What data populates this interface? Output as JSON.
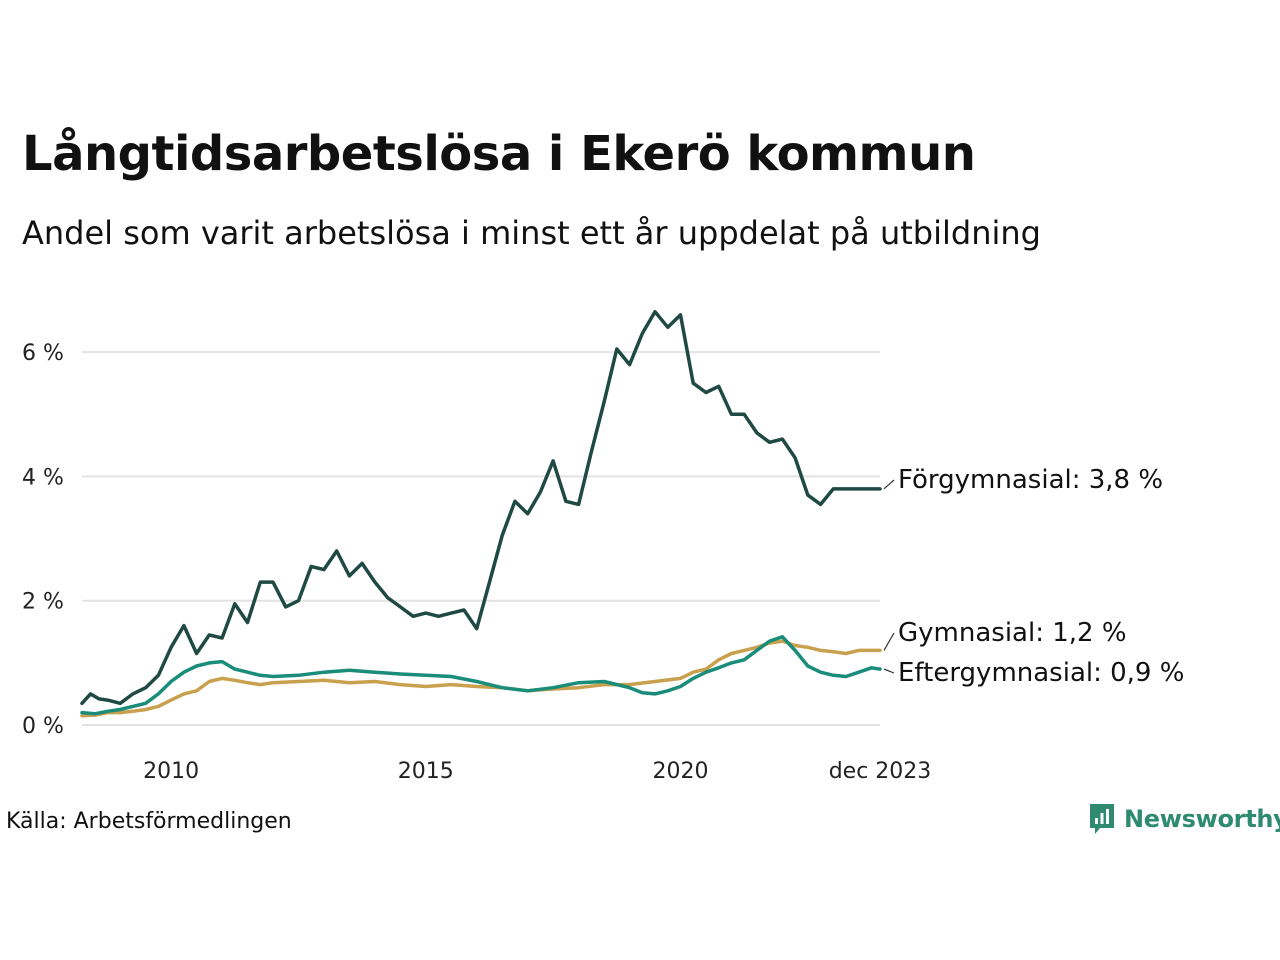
{
  "title": "Långtidsarbetslösa i Ekerö kommun",
  "subtitle": "Andel som varit arbetslösa i minst ett år uppdelat på utbildning",
  "source": "Källa: Arbetsförmedlingen",
  "brand": {
    "name": "Newsworthy",
    "icon": "newsworthy-logo-icon",
    "color": "#2e8b6f"
  },
  "chart_data": {
    "type": "line",
    "title": "Långtidsarbetslösa i Ekerö kommun",
    "xlabel": "",
    "ylabel": "",
    "xlim": [
      2008.25,
      2023.917
    ],
    "ylim": [
      0,
      7
    ],
    "grid": true,
    "y_ticks": [
      {
        "value": 0,
        "label": "0 %"
      },
      {
        "value": 2,
        "label": "2 %"
      },
      {
        "value": 4,
        "label": "4 %"
      },
      {
        "value": 6,
        "label": "6 %"
      }
    ],
    "x_ticks": [
      {
        "value": 2010,
        "label": "2010"
      },
      {
        "value": 2015,
        "label": "2015"
      },
      {
        "value": 2020,
        "label": "2020"
      },
      {
        "value": 2023.917,
        "label": "dec 2023"
      }
    ],
    "series": [
      {
        "name": "Förgymnasial",
        "label": "Förgymnasial: 3,8 %",
        "color": "#1f4a43",
        "x": [
          2008.25,
          2008.417,
          2008.583,
          2008.75,
          2009.0,
          2009.25,
          2009.5,
          2009.75,
          2010.0,
          2010.25,
          2010.5,
          2010.75,
          2011.0,
          2011.25,
          2011.5,
          2011.75,
          2012.0,
          2012.25,
          2012.5,
          2012.75,
          2013.0,
          2013.25,
          2013.5,
          2013.75,
          2014.0,
          2014.25,
          2014.5,
          2014.75,
          2015.0,
          2015.25,
          2015.5,
          2015.75,
          2016.0,
          2016.25,
          2016.5,
          2016.75,
          2017.0,
          2017.25,
          2017.5,
          2017.75,
          2018.0,
          2018.25,
          2018.5,
          2018.75,
          2019.0,
          2019.25,
          2019.5,
          2019.75,
          2020.0,
          2020.25,
          2020.5,
          2020.75,
          2021.0,
          2021.25,
          2021.5,
          2021.75,
          2022.0,
          2022.25,
          2022.5,
          2022.75,
          2023.0,
          2023.25,
          2023.5,
          2023.75,
          2023.917
        ],
        "values": [
          0.35,
          0.5,
          0.42,
          0.4,
          0.35,
          0.5,
          0.6,
          0.8,
          1.25,
          1.6,
          1.15,
          1.45,
          1.4,
          1.95,
          1.65,
          2.3,
          2.3,
          1.9,
          2.0,
          2.55,
          2.5,
          2.8,
          2.4,
          2.6,
          2.3,
          2.05,
          1.9,
          1.75,
          1.8,
          1.75,
          1.8,
          1.85,
          1.55,
          2.3,
          3.05,
          3.6,
          3.4,
          3.75,
          4.25,
          3.6,
          3.55,
          4.4,
          5.2,
          6.05,
          5.8,
          6.3,
          6.65,
          6.4,
          6.6,
          5.5,
          5.35,
          5.45,
          5.0,
          5.0,
          4.7,
          4.55,
          4.6,
          4.3,
          3.7,
          3.55,
          3.8,
          3.8,
          3.8,
          3.8,
          3.8
        ]
      },
      {
        "name": "Gymnasial",
        "label": "Gymnasial: 1,2 %",
        "color": "#c9a04d",
        "x": [
          2008.25,
          2008.5,
          2008.75,
          2009.0,
          2009.25,
          2009.5,
          2009.75,
          2010.0,
          2010.25,
          2010.5,
          2010.75,
          2011.0,
          2011.25,
          2011.5,
          2011.75,
          2012.0,
          2012.5,
          2013.0,
          2013.5,
          2014.0,
          2014.5,
          2015.0,
          2015.5,
          2016.0,
          2016.5,
          2017.0,
          2017.5,
          2018.0,
          2018.5,
          2019.0,
          2019.5,
          2020.0,
          2020.25,
          2020.5,
          2020.75,
          2021.0,
          2021.25,
          2021.5,
          2021.75,
          2022.0,
          2022.25,
          2022.5,
          2022.75,
          2023.0,
          2023.25,
          2023.5,
          2023.75,
          2023.917
        ],
        "values": [
          0.15,
          0.16,
          0.2,
          0.2,
          0.22,
          0.25,
          0.3,
          0.4,
          0.5,
          0.55,
          0.7,
          0.75,
          0.72,
          0.68,
          0.65,
          0.68,
          0.7,
          0.72,
          0.68,
          0.7,
          0.65,
          0.62,
          0.65,
          0.62,
          0.6,
          0.55,
          0.58,
          0.6,
          0.65,
          0.65,
          0.7,
          0.75,
          0.85,
          0.9,
          1.05,
          1.15,
          1.2,
          1.25,
          1.32,
          1.35,
          1.28,
          1.25,
          1.2,
          1.18,
          1.15,
          1.2,
          1.2,
          1.2
        ]
      },
      {
        "name": "Eftergymnasial",
        "label": "Eftergymnasial: 0,9 %",
        "color": "#1a8c7a",
        "x": [
          2008.25,
          2008.5,
          2008.75,
          2009.0,
          2009.25,
          2009.5,
          2009.75,
          2010.0,
          2010.25,
          2010.5,
          2010.75,
          2011.0,
          2011.25,
          2011.5,
          2011.75,
          2012.0,
          2012.5,
          2013.0,
          2013.5,
          2014.0,
          2014.5,
          2015.0,
          2015.5,
          2016.0,
          2016.5,
          2017.0,
          2017.5,
          2018.0,
          2018.5,
          2019.0,
          2019.25,
          2019.5,
          2019.75,
          2020.0,
          2020.25,
          2020.5,
          2020.75,
          2021.0,
          2021.25,
          2021.5,
          2021.75,
          2022.0,
          2022.25,
          2022.5,
          2022.75,
          2023.0,
          2023.25,
          2023.5,
          2023.75,
          2023.917
        ],
        "values": [
          0.2,
          0.18,
          0.22,
          0.25,
          0.3,
          0.35,
          0.5,
          0.7,
          0.85,
          0.95,
          1.0,
          1.02,
          0.9,
          0.85,
          0.8,
          0.78,
          0.8,
          0.85,
          0.88,
          0.85,
          0.82,
          0.8,
          0.78,
          0.7,
          0.6,
          0.55,
          0.6,
          0.68,
          0.7,
          0.6,
          0.52,
          0.5,
          0.55,
          0.62,
          0.75,
          0.85,
          0.92,
          1.0,
          1.05,
          1.2,
          1.35,
          1.42,
          1.2,
          0.95,
          0.85,
          0.8,
          0.78,
          0.85,
          0.92,
          0.9
        ]
      }
    ]
  }
}
